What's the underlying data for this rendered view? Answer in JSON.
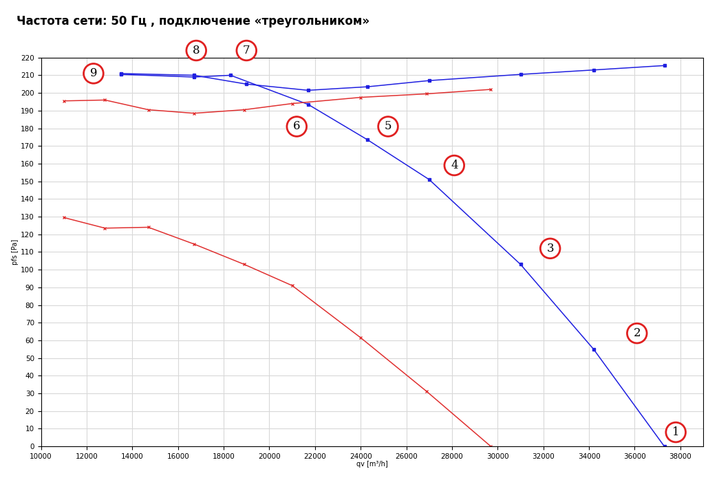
{
  "chart_data": {
    "type": "line",
    "title": "Частота сети: 50 Гц , подключение «треугольником»",
    "x_label": "qv [m³/h]",
    "y_label": "pfs [Pa]",
    "xlim": [
      10000,
      39000
    ],
    "ylim": [
      0,
      220
    ],
    "xticks": [
      10000,
      12000,
      14000,
      16000,
      18000,
      20000,
      22000,
      24000,
      26000,
      28000,
      30000,
      32000,
      34000,
      36000,
      38000
    ],
    "yticks": [
      0,
      10,
      20,
      30,
      40,
      50,
      60,
      70,
      80,
      90,
      100,
      110,
      120,
      130,
      140,
      150,
      160,
      170,
      180,
      190,
      200,
      210,
      220
    ],
    "grid": true,
    "series": [
      {
        "color": "#1f1fe0",
        "marker": "square",
        "x": [
          13500,
          16700,
          18300,
          21700,
          24300,
          27000,
          31000,
          34200,
          37300
        ],
        "values": [
          210.5,
          209,
          210,
          193.5,
          173.5,
          151,
          103,
          55,
          0
        ]
      },
      {
        "color": "#1f1fe0",
        "marker": "square",
        "x": [
          13500,
          16700,
          19000,
          21700,
          24300,
          27000,
          31000,
          34200,
          37300
        ],
        "values": [
          211,
          210,
          205,
          201.5,
          203.5,
          207,
          210.5,
          213,
          215.5
        ]
      },
      {
        "color": "#e03030",
        "marker": "x",
        "x": [
          11000,
          12800,
          14700,
          16700,
          18900,
          21000,
          24000,
          26900,
          29700
        ],
        "values": [
          195.5,
          196,
          190.5,
          188.5,
          190.5,
          194,
          197.5,
          199.5,
          202
        ]
      },
      {
        "color": "#e03030",
        "marker": "x",
        "x": [
          11000,
          12800,
          14700,
          16700,
          18900,
          21000,
          24000,
          26900,
          29700
        ],
        "values": [
          129.5,
          123.5,
          124,
          114.5,
          103,
          91,
          61.5,
          31,
          0
        ]
      }
    ],
    "annotations": [
      {
        "text": "1",
        "x": 37800,
        "y": 8
      },
      {
        "text": "2",
        "x": 36100,
        "y": 64
      },
      {
        "text": "3",
        "x": 32300,
        "y": 112
      },
      {
        "text": "4",
        "x": 28100,
        "y": 159
      },
      {
        "text": "5",
        "x": 25200,
        "y": 181
      },
      {
        "text": "6",
        "x": 21200,
        "y": 181
      },
      {
        "text": "7",
        "x": 19000,
        "y": 224
      },
      {
        "text": "8",
        "x": 16800,
        "y": 224
      },
      {
        "text": "9",
        "x": 12300,
        "y": 211
      }
    ]
  }
}
